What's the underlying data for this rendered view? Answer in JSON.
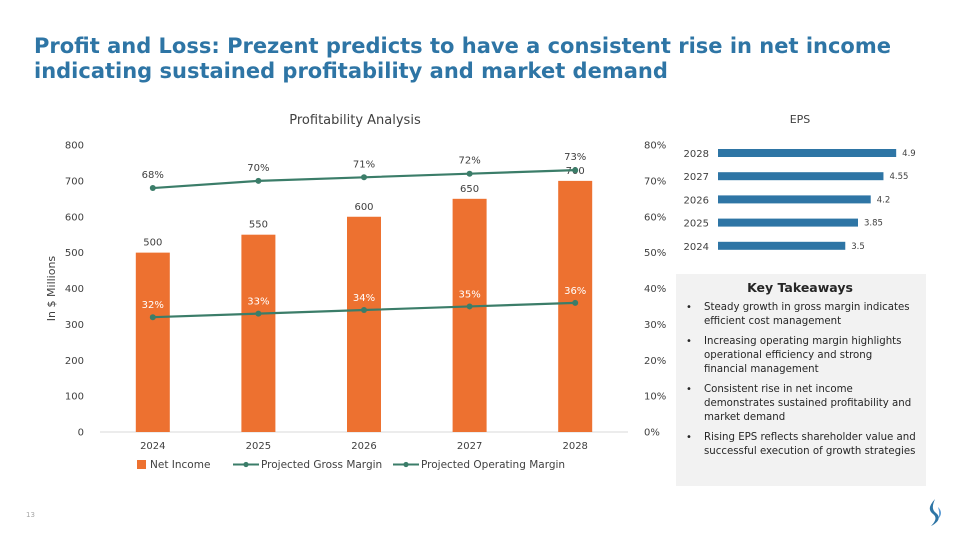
{
  "page": {
    "title_line1": "Profit and Loss: Prezent predicts to have a consistent rise in net income",
    "title_line2": "indicating sustained profitability and market demand",
    "page_number": "13"
  },
  "colors": {
    "title": "#2e75a5",
    "bar": "#ed7130",
    "gross_margin_line": "#3b7d69",
    "operating_margin_line": "#3b7d69",
    "eps_bar": "#2e75a5",
    "takeaways_bg": "#f2f2f2"
  },
  "chart_data": [
    {
      "type": "bar+line",
      "title": "Profitability Analysis",
      "xlabel": "",
      "ylabel": "In $ Millions",
      "categories": [
        "2024",
        "2025",
        "2026",
        "2027",
        "2028"
      ],
      "ylim": [
        0,
        800
      ],
      "yticks": [
        "0",
        "100",
        "200",
        "300",
        "400",
        "500",
        "600",
        "700",
        "800"
      ],
      "y2lim": [
        0,
        80
      ],
      "y2ticks": [
        "0%",
        "10%",
        "20%",
        "30%",
        "40%",
        "50%",
        "60%",
        "70%",
        "80%"
      ],
      "series": [
        {
          "name": "Net Income",
          "kind": "bar",
          "axis": "left",
          "values": [
            500,
            550,
            600,
            650,
            700
          ],
          "labels": [
            "500",
            "550",
            "600",
            "650",
            "700"
          ]
        },
        {
          "name": "Projected Gross Margin",
          "kind": "line",
          "axis": "right",
          "values": [
            68,
            70,
            71,
            72,
            73
          ],
          "labels": [
            "68%",
            "70%",
            "71%",
            "72%",
            "73%"
          ]
        },
        {
          "name": "Projected Operating Margin",
          "kind": "line",
          "axis": "right",
          "values": [
            32,
            33,
            34,
            35,
            36
          ],
          "labels": [
            "32%",
            "33%",
            "34%",
            "35%",
            "36%"
          ]
        }
      ],
      "legend": "bottom",
      "grid": false
    },
    {
      "type": "bar",
      "orientation": "horizontal",
      "title": "EPS",
      "categories": [
        "2028",
        "2027",
        "2026",
        "2025",
        "2024"
      ],
      "values": [
        4.9,
        4.55,
        4.2,
        3.85,
        3.5
      ],
      "labels": [
        "4.9",
        "4.55",
        "4.2",
        "3.85",
        "3.5"
      ],
      "xlim": [
        0,
        5.5
      ]
    }
  ],
  "takeaways": {
    "title": "Key Takeaways",
    "items": [
      "Steady growth in gross margin indicates efficient cost management",
      "Increasing operating margin highlights operational efficiency and strong financial management",
      "Consistent rise in net income demonstrates sustained profitability and market demand",
      "Rising EPS reflects shareholder value and successful execution of growth strategies"
    ]
  }
}
